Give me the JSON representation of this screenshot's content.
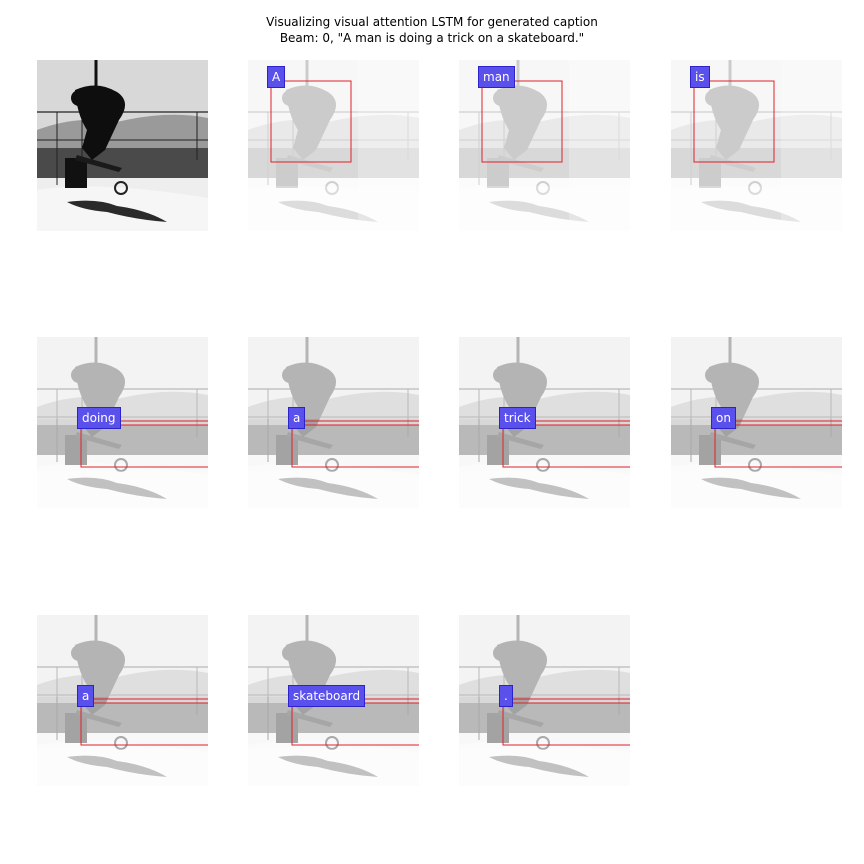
{
  "title_line1": "Visualizing visual attention LSTM for generated caption",
  "title_line2": "Beam: 0, \"A man is doing a trick on a skateboard.\"",
  "panels": [
    {
      "kind": "original"
    },
    {
      "word": "A",
      "attn": "upper"
    },
    {
      "word": "man",
      "attn": "upper"
    },
    {
      "word": "is",
      "attn": "upper"
    },
    {
      "word": "doing",
      "attn": "lower"
    },
    {
      "word": "a",
      "attn": "lower"
    },
    {
      "word": "trick",
      "attn": "lower"
    },
    {
      "word": "on",
      "attn": "lower"
    },
    {
      "word": "a",
      "attn": "lower"
    },
    {
      "word": "skateboard",
      "attn": "lower"
    },
    {
      "word": ".",
      "attn": "lower"
    }
  ],
  "colors": {
    "label_bg": "#5a50eb",
    "box": "#e0202a"
  }
}
